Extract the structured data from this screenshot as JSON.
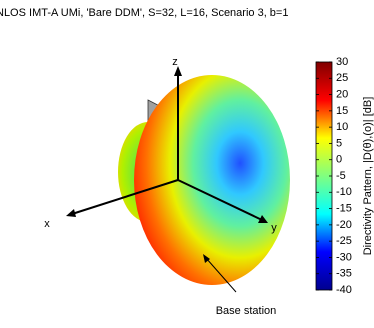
{
  "chart_data": {
    "type": "surface",
    "title": "NLOS IMT-A UMi, 'Bare DDM', S=32, L=16, Scenario 3,  b=1",
    "axis_labels": {
      "x": "x",
      "y": "y",
      "z": "z"
    },
    "annotation": "Base station",
    "colorbar": {
      "label": "Directivity Pattern, |D(θ),(o)| [dB]",
      "clim": [
        -40,
        30
      ],
      "ticks": [
        30,
        25,
        20,
        15,
        10,
        5,
        0,
        -5,
        -10,
        -15,
        -20,
        -25,
        -30,
        -35,
        -40
      ],
      "colormap": [
        "#00008f",
        "#0000ff",
        "#00ffff",
        "#80ff80",
        "#ffff00",
        "#ff0000",
        "#800000"
      ]
    }
  }
}
